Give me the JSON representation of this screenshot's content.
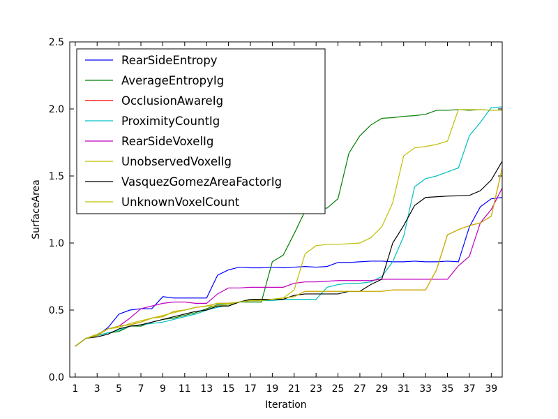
{
  "chart_data": {
    "type": "line",
    "xlabel": "Iteration",
    "ylabel": "SurfaceArea",
    "xlim": [
      0.5,
      40
    ],
    "ylim": [
      0,
      2.5
    ],
    "xticks": [
      1,
      3,
      5,
      7,
      9,
      11,
      13,
      15,
      17,
      19,
      21,
      23,
      25,
      27,
      29,
      31,
      33,
      35,
      37,
      39
    ],
    "yticks": [
      "0.0",
      "0.5",
      "1.0",
      "1.5",
      "2.0",
      "2.5"
    ],
    "grid": false,
    "legend_position": "upper-left",
    "x": [
      1,
      2,
      3,
      4,
      5,
      6,
      7,
      8,
      9,
      10,
      11,
      12,
      13,
      14,
      15,
      16,
      17,
      18,
      19,
      20,
      21,
      22,
      23,
      24,
      25,
      26,
      27,
      28,
      29,
      30,
      31,
      32,
      33,
      34,
      35,
      36,
      37,
      38,
      39,
      40
    ],
    "series": [
      {
        "name": "RearSideEntropy",
        "color": "#0000ff",
        "values": [
          0.23,
          0.29,
          0.31,
          0.37,
          0.47,
          0.5,
          0.51,
          0.51,
          0.6,
          0.59,
          0.59,
          0.59,
          0.59,
          0.76,
          0.8,
          0.82,
          0.815,
          0.815,
          0.82,
          0.815,
          0.82,
          0.825,
          0.82,
          0.825,
          0.855,
          0.855,
          0.86,
          0.865,
          0.865,
          0.86,
          0.86,
          0.865,
          0.86,
          0.86,
          0.865,
          0.86,
          1.12,
          1.27,
          1.33,
          1.34
        ]
      },
      {
        "name": "AverageEntropyIg",
        "color": "#008000",
        "values": [
          0.23,
          0.29,
          0.31,
          0.33,
          0.34,
          0.38,
          0.38,
          0.41,
          0.43,
          0.44,
          0.46,
          0.48,
          0.51,
          0.54,
          0.55,
          0.56,
          0.56,
          0.56,
          0.86,
          0.91,
          1.07,
          1.24,
          1.26,
          1.26,
          1.33,
          1.67,
          1.8,
          1.88,
          1.93,
          1.935,
          1.945,
          1.95,
          1.96,
          1.99,
          1.99,
          1.995,
          1.99,
          1.995,
          1.99,
          1.99
        ]
      },
      {
        "name": "OcclusionAwareIg",
        "color": "#ff0000",
        "values": [
          0.23,
          0.29,
          0.31,
          0.36,
          0.38,
          0.39,
          0.41,
          0.44,
          0.45,
          0.49,
          0.5,
          0.52,
          0.53,
          0.55,
          0.55,
          0.56,
          0.57,
          0.57,
          0.58,
          0.59,
          0.6,
          0.64,
          0.64,
          0.64,
          0.64,
          0.64,
          0.64,
          0.64,
          0.64,
          0.65,
          0.65,
          0.65,
          0.65,
          0.8,
          1.06,
          1.1,
          1.13,
          1.15,
          1.2,
          1.56
        ]
      },
      {
        "name": "ProximityCountIg",
        "color": "#00bfbf",
        "values": [
          0.23,
          0.29,
          0.31,
          0.33,
          0.35,
          0.38,
          0.39,
          0.4,
          0.41,
          0.43,
          0.45,
          0.47,
          0.5,
          0.52,
          0.54,
          0.56,
          0.57,
          0.57,
          0.57,
          0.58,
          0.58,
          0.58,
          0.58,
          0.67,
          0.69,
          0.7,
          0.7,
          0.71,
          0.75,
          0.86,
          1.05,
          1.42,
          1.48,
          1.5,
          1.53,
          1.56,
          1.8,
          1.9,
          2.01,
          2.015
        ]
      },
      {
        "name": "RearSideVoxelIg",
        "color": "#bf00bf",
        "values": [
          0.23,
          0.29,
          0.31,
          0.36,
          0.38,
          0.44,
          0.51,
          0.53,
          0.55,
          0.56,
          0.56,
          0.55,
          0.55,
          0.62,
          0.665,
          0.665,
          0.67,
          0.67,
          0.67,
          0.67,
          0.7,
          0.71,
          0.71,
          0.715,
          0.72,
          0.72,
          0.72,
          0.72,
          0.73,
          0.73,
          0.73,
          0.73,
          0.73,
          0.73,
          0.73,
          0.83,
          0.9,
          1.15,
          1.25,
          1.41
        ]
      },
      {
        "name": "UnobservedVoxelIg",
        "color": "#bfbf00",
        "values": [
          0.23,
          0.29,
          0.32,
          0.36,
          0.37,
          0.4,
          0.42,
          0.44,
          0.46,
          0.48,
          0.5,
          0.52,
          0.53,
          0.53,
          0.54,
          0.56,
          0.57,
          0.58,
          0.58,
          0.59,
          0.65,
          0.92,
          0.98,
          0.99,
          0.99,
          0.995,
          1.0,
          1.04,
          1.12,
          1.3,
          1.65,
          1.71,
          1.72,
          1.735,
          1.76,
          1.995,
          1.995,
          1.995,
          1.99,
          1.99
        ]
      },
      {
        "name": "VasquezGomezAreaFactorIg",
        "color": "#000000",
        "values": [
          0.23,
          0.29,
          0.3,
          0.32,
          0.36,
          0.38,
          0.39,
          0.41,
          0.43,
          0.45,
          0.47,
          0.49,
          0.5,
          0.53,
          0.53,
          0.56,
          0.58,
          0.58,
          0.58,
          0.58,
          0.61,
          0.62,
          0.62,
          0.62,
          0.62,
          0.64,
          0.64,
          0.69,
          0.73,
          1.0,
          1.13,
          1.28,
          1.34,
          1.345,
          1.35,
          1.352,
          1.355,
          1.39,
          1.47,
          1.61
        ]
      },
      {
        "name": "UnknownVoxelCount",
        "color": "#bfbf00",
        "values": [
          0.23,
          0.29,
          0.31,
          0.36,
          0.38,
          0.39,
          0.41,
          0.44,
          0.45,
          0.49,
          0.5,
          0.52,
          0.53,
          0.55,
          0.55,
          0.56,
          0.57,
          0.57,
          0.58,
          0.59,
          0.6,
          0.64,
          0.64,
          0.64,
          0.64,
          0.64,
          0.64,
          0.64,
          0.64,
          0.65,
          0.65,
          0.65,
          0.65,
          0.8,
          1.06,
          1.1,
          1.13,
          1.15,
          1.2,
          1.56
        ]
      }
    ]
  }
}
